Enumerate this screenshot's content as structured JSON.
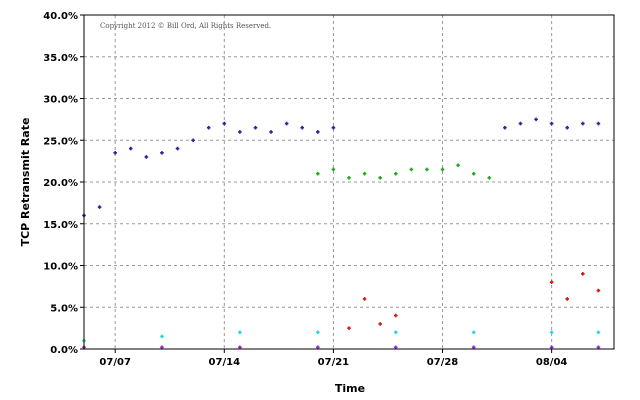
{
  "chart_data": {
    "type": "scatter",
    "title": "",
    "copyright": "Copyright 2012 © Bill Ord, All Rights Reserved.",
    "xlabel": "Time",
    "ylabel": "TCP Retransmit Rate",
    "x_range": [
      "2012-07-05",
      "2012-08-08"
    ],
    "xticks": [
      {
        "date": "2012-07-07",
        "label": "07/07"
      },
      {
        "date": "2012-07-14",
        "label": "07/14"
      },
      {
        "date": "2012-07-21",
        "label": "07/21"
      },
      {
        "date": "2012-07-28",
        "label": "07/28"
      },
      {
        "date": "2012-08-04",
        "label": "08/04"
      }
    ],
    "ylim": [
      0,
      40
    ],
    "yticks": [
      "0.0%",
      "5.0%",
      "10.0%",
      "15.0%",
      "20.0%",
      "25.0%",
      "30.0%",
      "35.0%",
      "40.0%"
    ],
    "grid": true,
    "legend": "none",
    "series": [
      {
        "color": "#1e2a9c",
        "points": [
          [
            "2012-07-05",
            16.0
          ],
          [
            "2012-07-06",
            17.0
          ],
          [
            "2012-07-07",
            23.5
          ],
          [
            "2012-07-08",
            24.0
          ],
          [
            "2012-07-09",
            23.0
          ],
          [
            "2012-07-10",
            23.5
          ],
          [
            "2012-07-11",
            24.0
          ],
          [
            "2012-07-12",
            25.0
          ],
          [
            "2012-07-13",
            26.5
          ],
          [
            "2012-07-14",
            27.0
          ],
          [
            "2012-07-15",
            26.0
          ],
          [
            "2012-07-16",
            26.5
          ],
          [
            "2012-07-17",
            26.0
          ],
          [
            "2012-07-18",
            27.0
          ],
          [
            "2012-07-19",
            26.5
          ],
          [
            "2012-07-20",
            26.0
          ],
          [
            "2012-07-21",
            26.5
          ],
          [
            "2012-08-01",
            26.5
          ],
          [
            "2012-08-02",
            27.0
          ],
          [
            "2012-08-03",
            27.5
          ],
          [
            "2012-08-04",
            27.0
          ],
          [
            "2012-08-05",
            26.5
          ],
          [
            "2012-08-06",
            27.0
          ],
          [
            "2012-08-07",
            27.0
          ]
        ]
      },
      {
        "color": "#22a81e",
        "points": [
          [
            "2012-07-20",
            21.0
          ],
          [
            "2012-07-21",
            21.5
          ],
          [
            "2012-07-22",
            20.5
          ],
          [
            "2012-07-23",
            21.0
          ],
          [
            "2012-07-24",
            20.5
          ],
          [
            "2012-07-25",
            21.0
          ],
          [
            "2012-07-26",
            21.5
          ],
          [
            "2012-07-27",
            21.5
          ],
          [
            "2012-07-28",
            21.5
          ],
          [
            "2012-07-29",
            22.0
          ],
          [
            "2012-07-30",
            21.0
          ],
          [
            "2012-07-31",
            20.5
          ]
        ]
      },
      {
        "color": "#d01818",
        "points": [
          [
            "2012-07-22",
            2.5
          ],
          [
            "2012-07-23",
            6.0
          ],
          [
            "2012-07-24",
            3.0
          ],
          [
            "2012-07-25",
            4.0
          ],
          [
            "2012-08-04",
            8.0
          ],
          [
            "2012-08-05",
            6.0
          ],
          [
            "2012-08-06",
            9.0
          ],
          [
            "2012-08-07",
            7.0
          ]
        ]
      },
      {
        "color": "#22d8d8",
        "points": [
          [
            "2012-07-05",
            1.0
          ],
          [
            "2012-07-10",
            1.5
          ],
          [
            "2012-07-15",
            2.0
          ],
          [
            "2012-07-20",
            2.0
          ],
          [
            "2012-07-25",
            2.0
          ],
          [
            "2012-07-30",
            2.0
          ],
          [
            "2012-08-04",
            2.0
          ],
          [
            "2012-08-07",
            2.0
          ]
        ]
      },
      {
        "color": "#9a1ed8",
        "points": [
          [
            "2012-07-05",
            0.2
          ],
          [
            "2012-07-10",
            0.2
          ],
          [
            "2012-07-15",
            0.2
          ],
          [
            "2012-07-20",
            0.2
          ],
          [
            "2012-07-25",
            0.2
          ],
          [
            "2012-07-30",
            0.2
          ],
          [
            "2012-08-04",
            0.2
          ],
          [
            "2012-08-07",
            0.2
          ]
        ]
      }
    ]
  }
}
